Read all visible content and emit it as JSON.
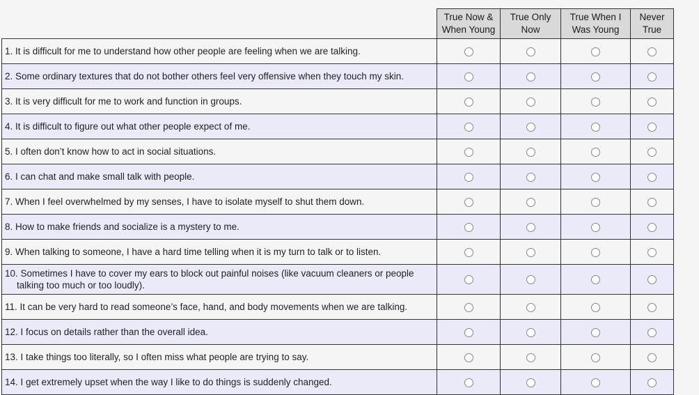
{
  "page": {
    "background": "#f5f5f5"
  },
  "table": {
    "headers": [
      {
        "line1": "True Now &",
        "line2": "When Young"
      },
      {
        "line1": "True Only",
        "line2": "Now"
      },
      {
        "line1": "True When I",
        "line2": "Was Young"
      },
      {
        "line1": "Never",
        "line2": "True"
      }
    ],
    "questions": [
      "1. It is difficult for me to understand how other people are feeling when we are talking.",
      "2. Some ordinary textures that do not bother others feel very offensive when they touch my skin.",
      "3. It is very difficult for me to work and function in groups.",
      "4. It is difficult to figure out what other people expect of me.",
      "5. I often don’t know how to act in social situations.",
      "6. I can chat and make small talk with people.",
      "7. When I feel overwhelmed by my senses, I have to isolate myself to shut them down.",
      "8. How to make friends and socialize is a mystery to me.",
      "9. When talking to someone, I have a hard time telling when it is my turn to talk or to listen.",
      "10. Sometimes I have to cover my ears to block out painful noises (like vacuum cleaners or people talking too much or too loudly).",
      "11. It can be very hard to read someone’s face, hand, and body movements when we are talking.",
      "12. I focus on details rather than the overall idea.",
      "13. I take things too literally, so I often miss what people are trying to say.",
      "14. I get extremely upset when the way I like to do things is suddenly changed."
    ],
    "selected": [
      null,
      null,
      null,
      null,
      null,
      null,
      null,
      null,
      null,
      null,
      null,
      null,
      null,
      null
    ],
    "colors": {
      "page_bg": "#f5f5f5",
      "header_bg": "#d9d9d9",
      "row_odd_bg": "#f5f5f5",
      "row_even_bg": "#eaeaf8",
      "border": "#333333"
    }
  }
}
